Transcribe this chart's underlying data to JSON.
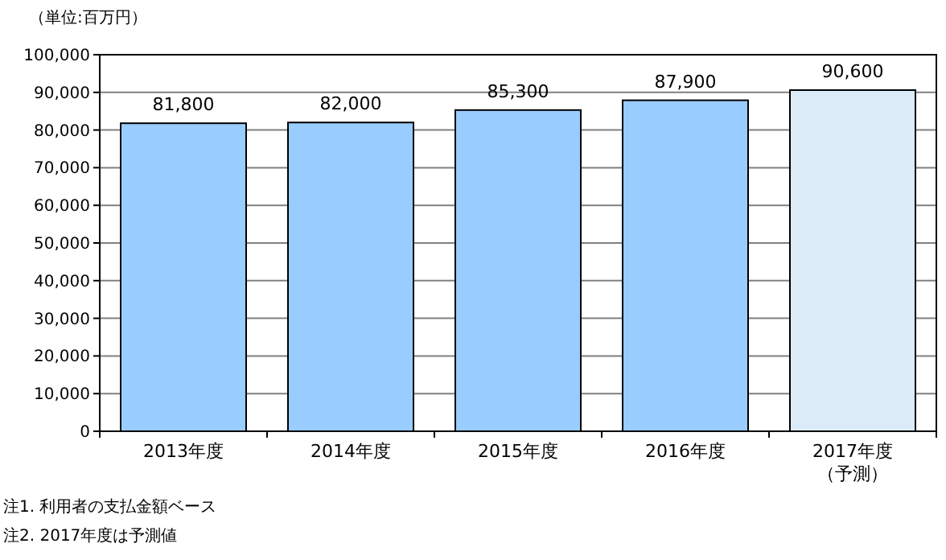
{
  "chart_data": {
    "type": "bar",
    "ylabel": "（単位:百万円）",
    "categories": [
      "2013年度",
      "2014年度",
      "2015年度",
      "2016年度",
      "2017年度（予測）"
    ],
    "values": [
      81800,
      82000,
      85300,
      87900,
      90600
    ],
    "colors": [
      "#99ccff",
      "#99ccff",
      "#99ccff",
      "#99ccff",
      "#dcebf8"
    ],
    "value_labels": [
      "81,800",
      "82,000",
      "85,300",
      "87,900",
      "90,600"
    ],
    "ylim": [
      0,
      100000
    ],
    "yticks": [
      0,
      {
        "value": 10000,
        "label": "10,000"
      },
      {
        "value": 20000,
        "label": "20,000"
      },
      {
        "value": 30000,
        "label": "30,000"
      },
      {
        "value": 40000,
        "label": "40,000"
      },
      {
        "value": 50000,
        "label": "50,000"
      },
      {
        "value": 60000,
        "label": "60,000"
      },
      {
        "value": 70000,
        "label": "70,000"
      },
      {
        "value": 80000,
        "label": "80,000"
      },
      {
        "value": 90000,
        "label": "90,000"
      },
      {
        "value": 100000,
        "label": "100,000"
      }
    ],
    "grid": "y",
    "annotations": [
      "注1. 利用者の支払金額ベース",
      "注2. 2017年度は予測値"
    ]
  }
}
